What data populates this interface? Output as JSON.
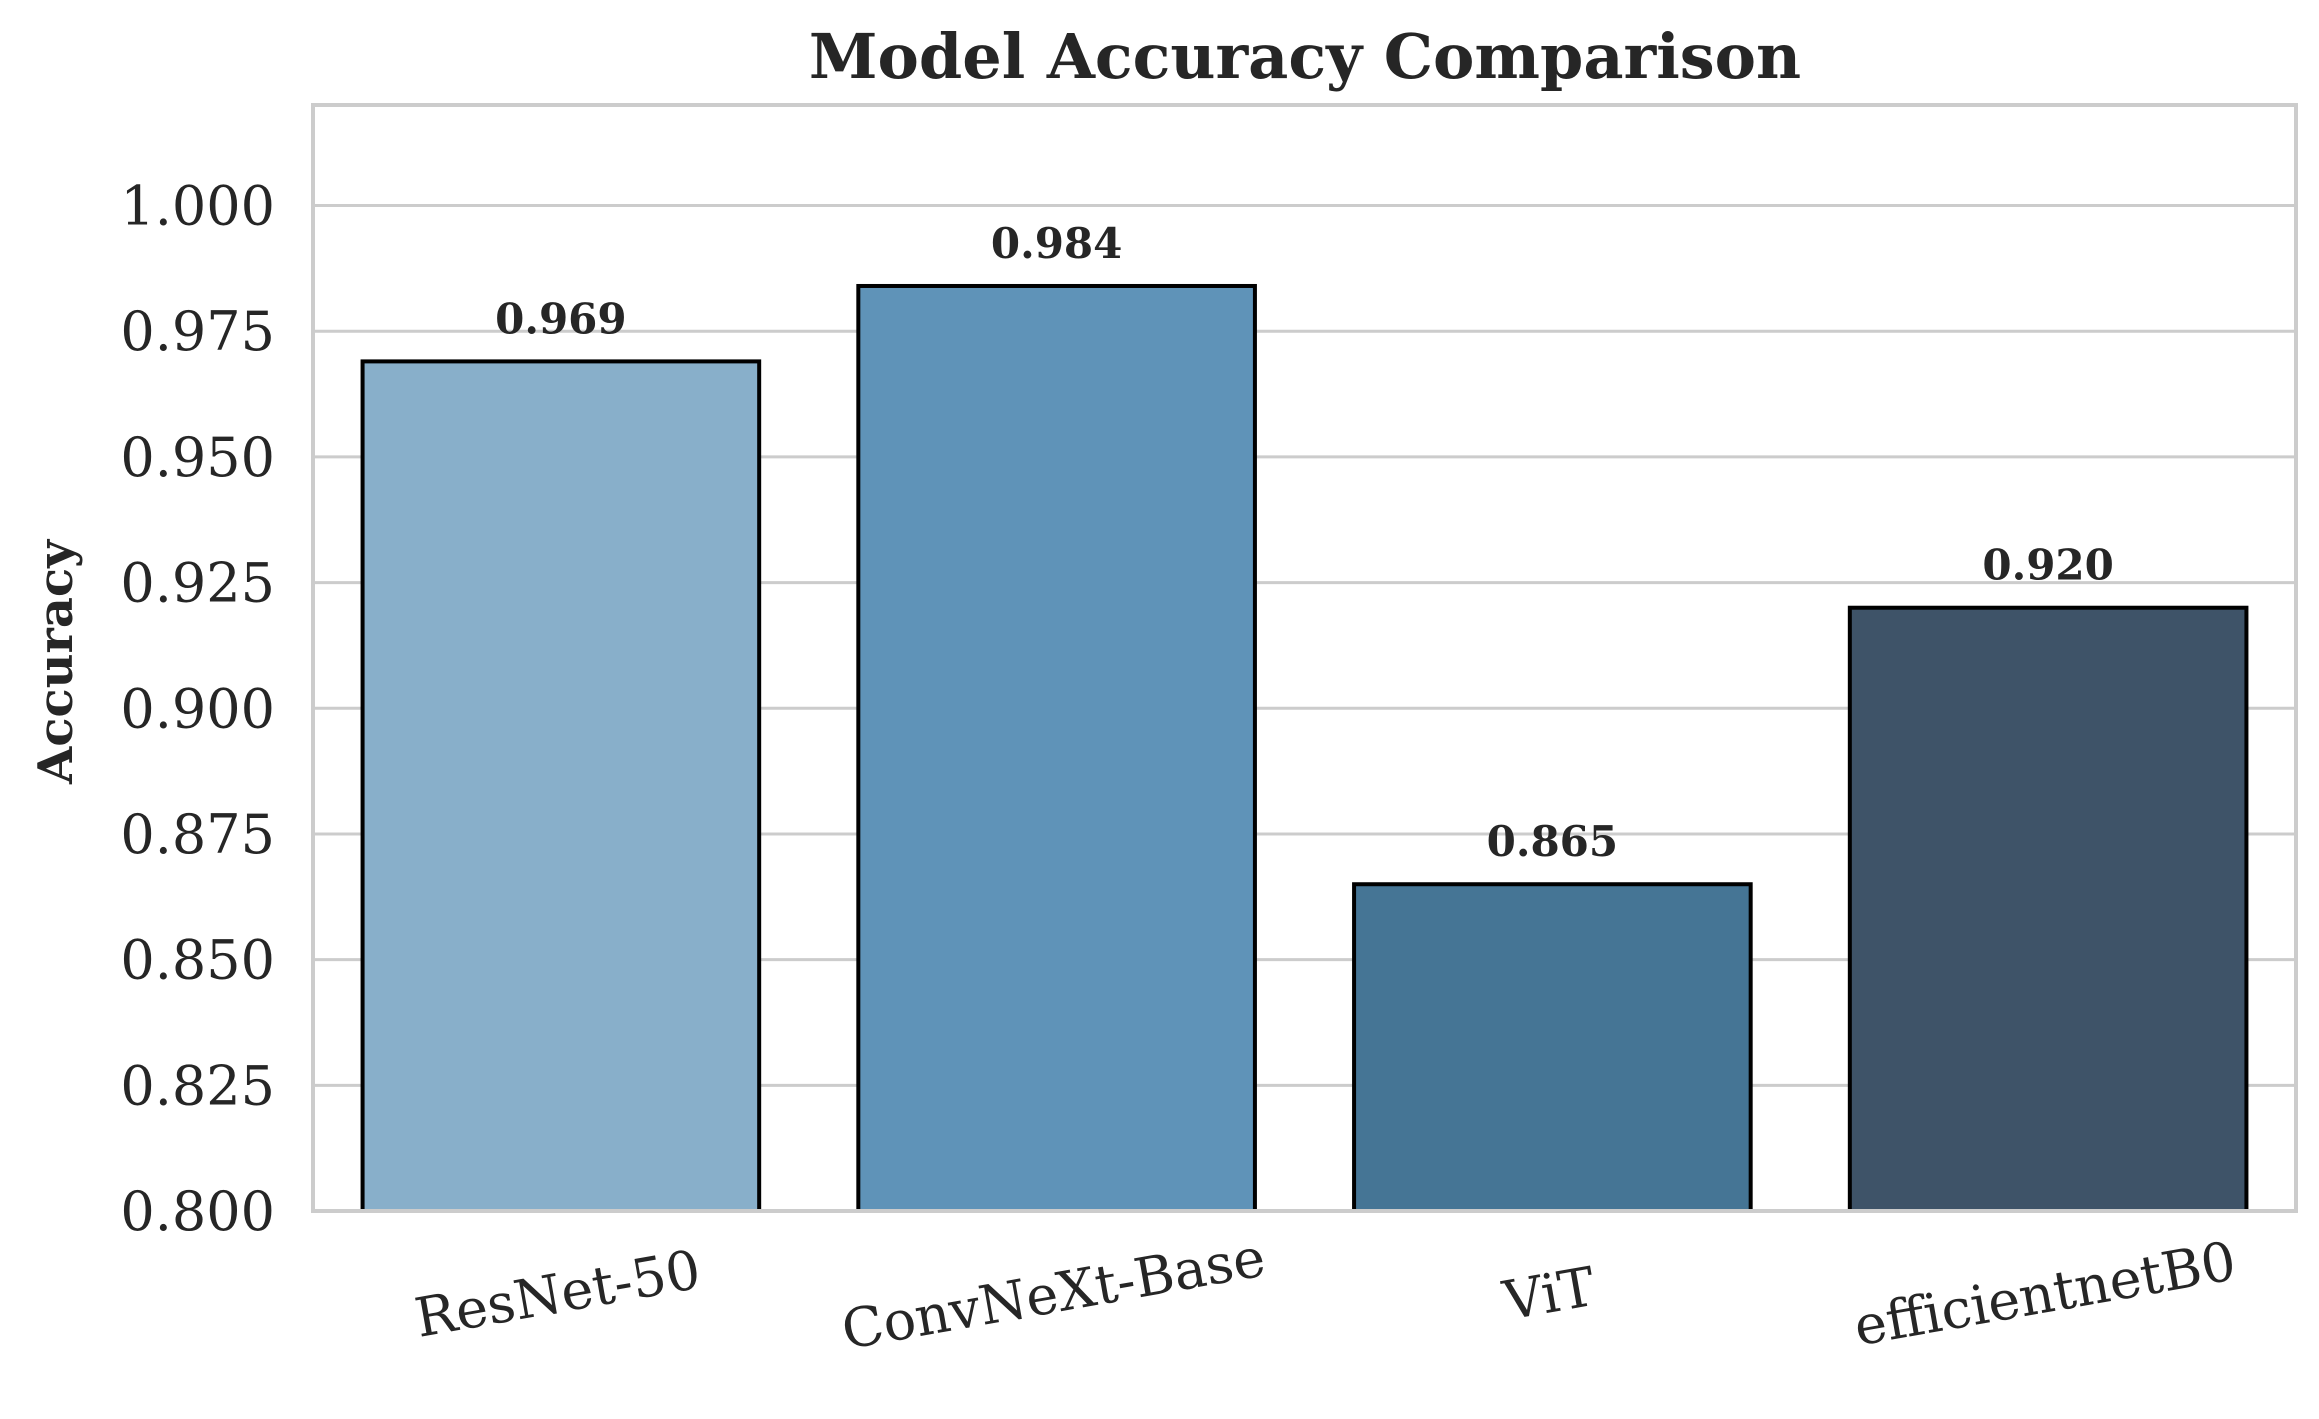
{
  "chart_data": {
    "type": "bar",
    "title": "Model Accuracy Comparison",
    "xlabel": "",
    "ylabel": "Accuracy",
    "categories": [
      "ResNet-50",
      "ConvNeXt-Base",
      "ViT",
      "efficientnetB0"
    ],
    "values": [
      0.969,
      0.984,
      0.865,
      0.92
    ],
    "value_labels": [
      "0.969",
      "0.984",
      "0.865",
      "0.920"
    ],
    "colors": [
      "#88afca",
      "#5f93b8",
      "#457595",
      "#3e5368"
    ],
    "ylim": [
      0.8,
      1.02
    ],
    "yticks": [
      0.8,
      0.825,
      0.85,
      0.875,
      0.9,
      0.925,
      0.95,
      0.975,
      1.0
    ],
    "ytick_labels": [
      "0.800",
      "0.825",
      "0.850",
      "0.875",
      "0.900",
      "0.925",
      "0.950",
      "0.975",
      "1.000"
    ],
    "grid": true,
    "grid_axis": "y",
    "xtick_rotation_deg": 10,
    "legend": null
  }
}
